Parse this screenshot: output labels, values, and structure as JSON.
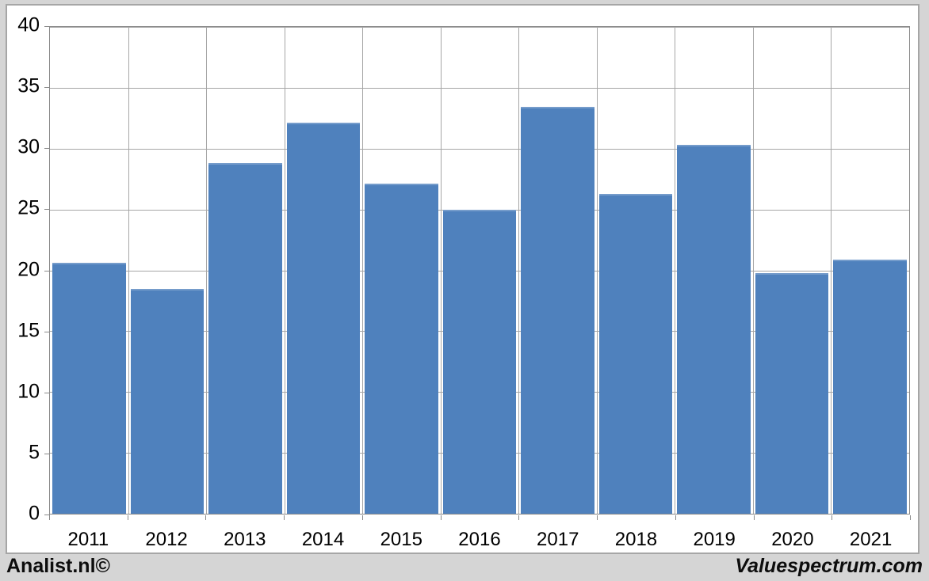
{
  "branding": {
    "left": "Analist.nl©",
    "right": "Valuespectrum.com"
  },
  "chart_data": {
    "type": "bar",
    "categories": [
      "2011",
      "2012",
      "2013",
      "2014",
      "2015",
      "2016",
      "2017",
      "2018",
      "2019",
      "2020",
      "2021"
    ],
    "values": [
      20.6,
      18.5,
      28.8,
      32.1,
      27.1,
      25.0,
      33.4,
      26.3,
      30.3,
      19.8,
      20.9
    ],
    "title": "",
    "xlabel": "",
    "ylabel": "",
    "ylim": [
      0,
      40
    ],
    "ytick_step": 5,
    "ytick_labels": [
      "0",
      "5",
      "10",
      "15",
      "20",
      "25",
      "30",
      "35",
      "40"
    ],
    "grid": true,
    "legend_position": "none",
    "bar_color": "#4f81bd",
    "gridline_color": "#a6a6a6",
    "axis_color": "#8a8a8a",
    "plot_background": "#ffffff",
    "outer_background": "#d5d5d5"
  }
}
